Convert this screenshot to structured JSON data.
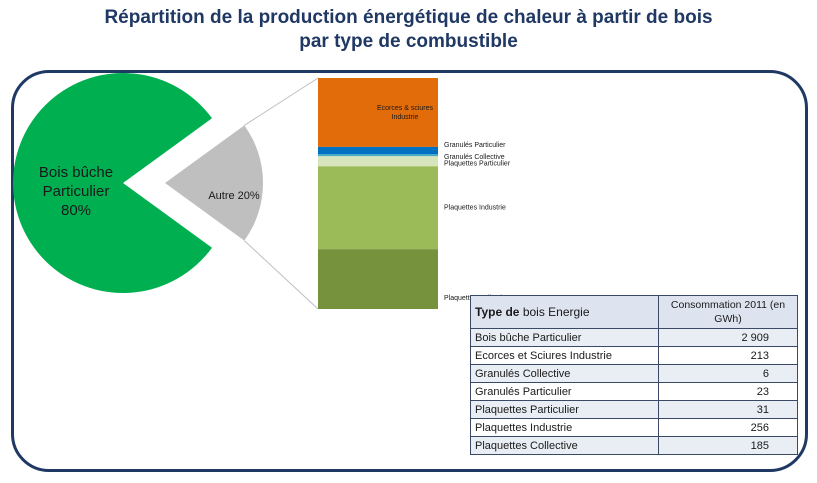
{
  "title_line1": "Répartition de la production énergétique de chaleur à partir de bois",
  "title_line2": "par type de combustible",
  "chart_data": [
    {
      "type": "pie",
      "categories": [
        "Bois bûche Particulier",
        "Autre"
      ],
      "values": [
        80,
        20
      ],
      "labels": [
        [
          "Bois bûche",
          "Particulier",
          "80%"
        ],
        [
          "Autre 20%"
        ]
      ],
      "colors": [
        "#00b050",
        "#bfbfbf"
      ]
    },
    {
      "type": "bar",
      "stacked": true,
      "categories": [
        "Ecorces & sciures Industrie",
        "Granulés Particulier",
        "Granulés Collective",
        "Plaquettes Particulier",
        "Plaquettes Industrie",
        "Plaquettes Collective"
      ],
      "labels": [
        [
          "Ecorces & sciures",
          "Industrie"
        ],
        [
          "Granulés Particulier"
        ],
        [
          "Granulés Collective"
        ],
        [
          "Plaquettes Particulier"
        ],
        [
          "Plaquettes Industrie"
        ],
        [
          "Plaquettes Collective"
        ]
      ],
      "values": [
        213,
        23,
        6,
        31,
        256,
        185
      ],
      "colors": [
        "#e36c0a",
        "#0070c0",
        "#4bacc6",
        "#d7e4bc",
        "#9bbb59",
        "#76923c"
      ]
    }
  ],
  "table": {
    "header_type_bold": "Type de",
    "header_type_rest": "bois Energie",
    "header_value": "Consommation 2011 (en GWh)",
    "rows": [
      {
        "label": "Bois bûche Particulier",
        "value": "2 909"
      },
      {
        "label": "Ecorces et Sciures Industrie",
        "value": "213"
      },
      {
        "label": "Granulés Collective",
        "value": "6"
      },
      {
        "label": "Granulés Particulier",
        "value": "23"
      },
      {
        "label": "Plaquettes Particulier",
        "value": "31"
      },
      {
        "label": "Plaquettes Industrie",
        "value": "256"
      },
      {
        "label": "Plaquettes Collective",
        "value": "185"
      }
    ]
  }
}
